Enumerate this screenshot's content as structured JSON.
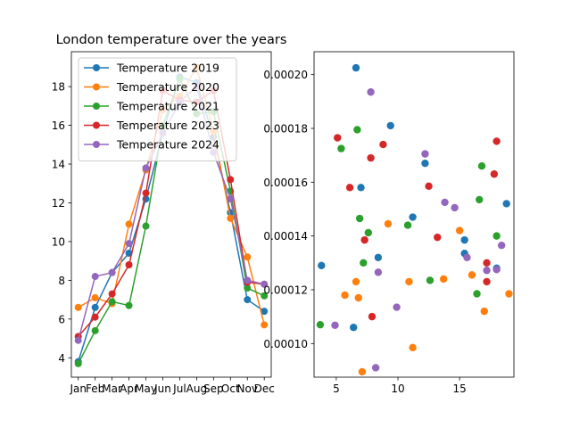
{
  "chart_data": [
    {
      "type": "line",
      "title": "London temperature over the years",
      "xlabel": "",
      "ylabel": "",
      "categories": [
        "Jan",
        "Feb",
        "Mar",
        "Apr",
        "May",
        "Jun",
        "Jul",
        "Aug",
        "Sep",
        "Oct",
        "Nov",
        "Dec"
      ],
      "ylim": [
        3.0,
        19.8
      ],
      "yticks": [
        4,
        6,
        8,
        10,
        12,
        14,
        16,
        18
      ],
      "grid": false,
      "legend_position": "upper-left",
      "series": [
        {
          "name": "Temperature 2019",
          "color": "#1f77b4",
          "values": [
            3.8,
            6.6,
            8.4,
            9.4,
            12.2,
            15.6,
            18.5,
            18.2,
            15.4,
            11.5,
            7.0,
            6.4
          ]
        },
        {
          "name": "Temperature 2020",
          "color": "#ff7f0e",
          "values": [
            6.6,
            7.1,
            6.8,
            10.9,
            13.7,
            16.8,
            17.5,
            19.0,
            15.7,
            11.2,
            9.2,
            5.7
          ]
        },
        {
          "name": "Temperature 2021",
          "color": "#2ca02c",
          "values": [
            3.7,
            5.4,
            6.9,
            6.7,
            10.8,
            16.0,
            18.4,
            16.6,
            16.7,
            12.6,
            7.6,
            7.2
          ]
        },
        {
          "name": "Temperature 2023",
          "color": "#d62728",
          "values": [
            5.1,
            6.1,
            7.3,
            8.8,
            12.5,
            17.8,
            17.3,
            17.2,
            17.8,
            13.2,
            7.9,
            7.8
          ]
        },
        {
          "name": "Temperature 2024",
          "color": "#9467bd",
          "values": [
            4.9,
            8.2,
            8.4,
            9.9,
            13.8,
            15.6,
            17.2,
            18.0,
            14.6,
            12.2,
            8.0,
            7.8
          ]
        }
      ]
    },
    {
      "type": "scatter",
      "title": "",
      "xlabel": "",
      "ylabel": "",
      "xlim": [
        3.2,
        19.4
      ],
      "ylim": [
        8.75e-05,
        0.0002085
      ],
      "xticks": [
        5,
        10,
        15
      ],
      "yticks": [
        0.0001,
        0.00012,
        0.00014,
        0.00016,
        0.00018,
        0.0002
      ],
      "yticklabels": [
        "0.00010",
        "0.00012",
        "0.00014",
        "0.00016",
        "0.00018",
        "0.00020"
      ],
      "grid": false,
      "series": [
        {
          "color": "#1f77b4",
          "points": [
            [
              3.8,
              0.000129
            ],
            [
              6.4,
              0.000106
            ],
            [
              6.6,
              0.0002025
            ],
            [
              7.0,
              0.000158
            ],
            [
              8.4,
              0.000132
            ],
            [
              9.4,
              0.000181
            ],
            [
              11.2,
              0.000147
            ],
            [
              12.2,
              0.000167
            ],
            [
              15.4,
              0.0001385
            ],
            [
              15.4,
              0.0001335
            ],
            [
              18.0,
              0.000128
            ],
            [
              18.8,
              0.000152
            ]
          ]
        },
        {
          "color": "#ff7f0e",
          "points": [
            [
              5.7,
              0.000118
            ],
            [
              6.6,
              0.000123
            ],
            [
              6.8,
              0.000117
            ],
            [
              7.1,
              8.95e-05
            ],
            [
              9.2,
              0.0001445
            ],
            [
              10.9,
              0.000123
            ],
            [
              11.2,
              9.85e-05
            ],
            [
              13.7,
              0.000124
            ],
            [
              15.0,
              0.000142
            ],
            [
              16.0,
              0.0001255
            ],
            [
              17.0,
              0.000112
            ],
            [
              19.0,
              0.0001185
            ]
          ]
        },
        {
          "color": "#2ca02c",
          "points": [
            [
              3.7,
              0.000107
            ],
            [
              5.4,
              0.0001725
            ],
            [
              6.7,
              0.0001795
            ],
            [
              6.9,
              0.0001465
            ],
            [
              7.2,
              0.00013
            ],
            [
              7.6,
              0.0001412
            ],
            [
              10.8,
              0.000144
            ],
            [
              12.6,
              0.0001235
            ],
            [
              16.4,
              0.0001185
            ],
            [
              16.6,
              0.0001535
            ],
            [
              16.8,
              0.000166
            ],
            [
              18.0,
              0.00014
            ]
          ]
        },
        {
          "color": "#d62728",
          "points": [
            [
              5.1,
              0.0001765
            ],
            [
              6.1,
              0.000158
            ],
            [
              7.3,
              0.0001385
            ],
            [
              7.8,
              0.000169
            ],
            [
              7.9,
              0.00011
            ],
            [
              8.8,
              0.000174
            ],
            [
              12.5,
              0.0001585
            ],
            [
              13.2,
              0.0001395
            ],
            [
              17.2,
              0.000123
            ],
            [
              17.2,
              0.00013
            ],
            [
              17.8,
              0.000163
            ],
            [
              18.0,
              0.0001752
            ]
          ]
        },
        {
          "color": "#9467bd",
          "points": [
            [
              4.9,
              0.0001068
            ],
            [
              7.8,
              0.0001935
            ],
            [
              8.2,
              9.1e-05
            ],
            [
              8.4,
              0.0001265
            ],
            [
              9.9,
              0.0001135
            ],
            [
              12.2,
              0.0001705
            ],
            [
              13.8,
              0.0001525
            ],
            [
              14.6,
              0.0001505
            ],
            [
              15.6,
              0.000132
            ],
            [
              17.2,
              0.0001272
            ],
            [
              18.0,
              0.0001275
            ],
            [
              18.4,
              0.0001365
            ]
          ]
        }
      ]
    }
  ]
}
